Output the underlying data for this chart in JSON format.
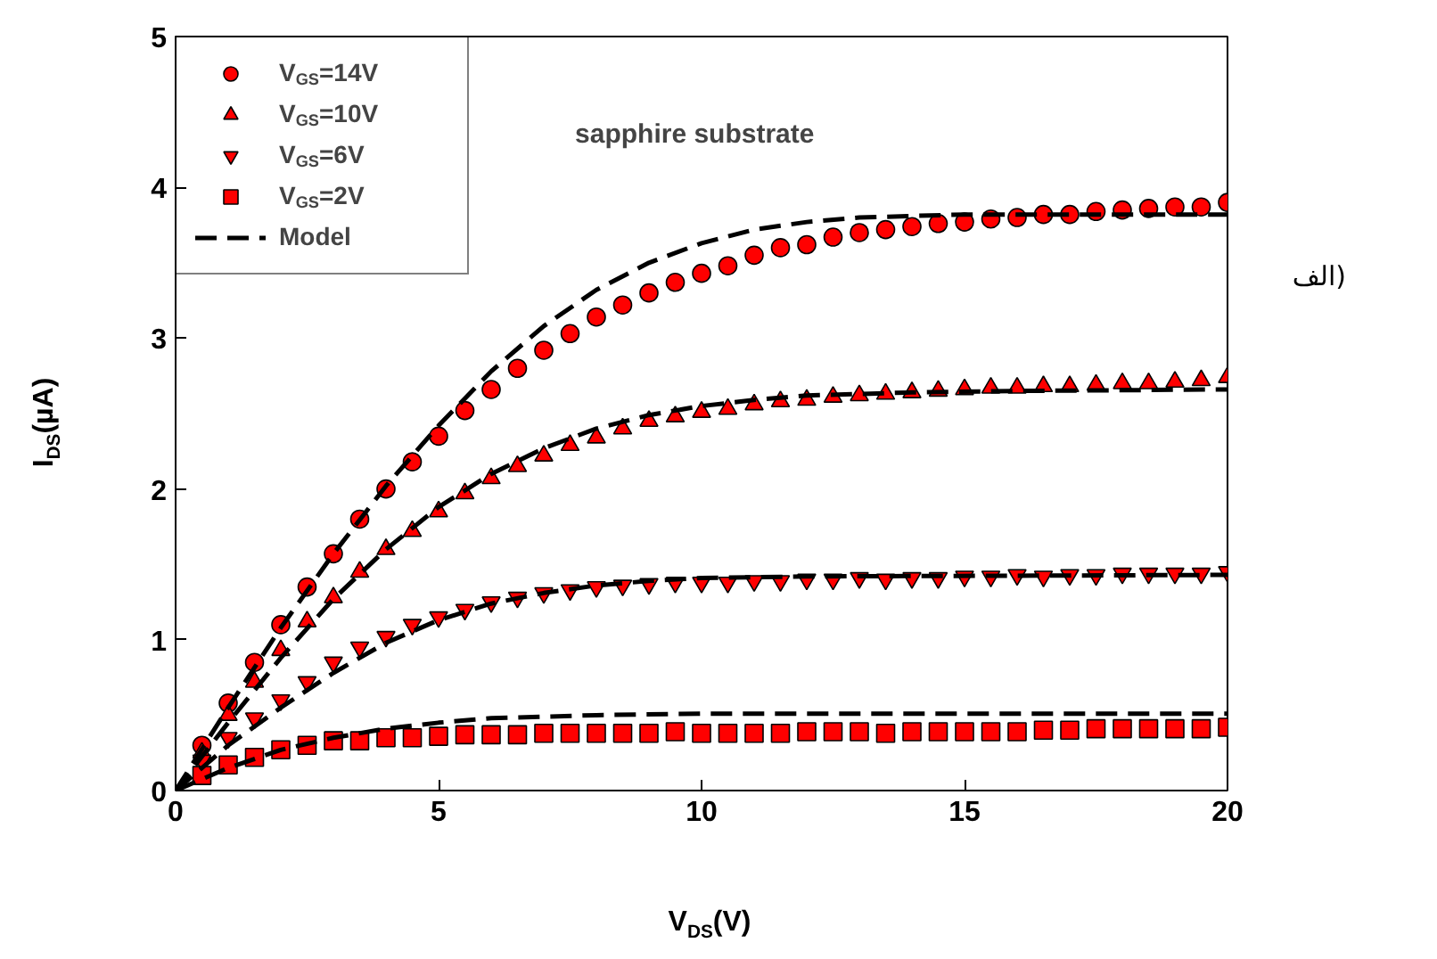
{
  "chart_data": {
    "type": "scatter",
    "xlabel": "V$_{DS}$(V)",
    "ylabel": "I$_{DS}$(µA)",
    "annotations": [
      "sapphire substrate",
      "الف)"
    ],
    "xlim": [
      0,
      20
    ],
    "ylim": [
      0,
      5
    ],
    "xticks": [
      0,
      5,
      10,
      15,
      20
    ],
    "yticks": [
      0,
      1,
      2,
      3,
      4,
      5
    ],
    "grid": false,
    "legend": "top left",
    "x": [
      0.5,
      1,
      1.5,
      2,
      2.5,
      3,
      3.5,
      4,
      4.5,
      5,
      5.5,
      6,
      6.5,
      7,
      7.5,
      8,
      8.5,
      9,
      9.5,
      10,
      10.5,
      11,
      11.5,
      12,
      12.5,
      13,
      13.5,
      14,
      14.5,
      15,
      15.5,
      16,
      16.5,
      17,
      17.5,
      18,
      18.5,
      19,
      19.5,
      20
    ],
    "series": [
      {
        "name": "V$_{GS}$=14V",
        "color": "#ff0000",
        "marker": "circle",
        "values": [
          0.3,
          0.58,
          0.85,
          1.1,
          1.35,
          1.57,
          1.8,
          2.0,
          2.18,
          2.35,
          2.52,
          2.66,
          2.8,
          2.92,
          3.03,
          3.14,
          3.22,
          3.3,
          3.37,
          3.43,
          3.48,
          3.55,
          3.6,
          3.62,
          3.67,
          3.7,
          3.72,
          3.74,
          3.76,
          3.77,
          3.79,
          3.8,
          3.82,
          3.82,
          3.84,
          3.85,
          3.86,
          3.87,
          3.87,
          3.9
        ]
      },
      {
        "name": "V$_{GS}$=10V",
        "color": "#ff0000",
        "marker": "triangle",
        "values": [
          0.25,
          0.5,
          0.72,
          0.93,
          1.12,
          1.28,
          1.45,
          1.6,
          1.72,
          1.85,
          1.97,
          2.07,
          2.15,
          2.22,
          2.29,
          2.34,
          2.4,
          2.45,
          2.48,
          2.51,
          2.53,
          2.56,
          2.58,
          2.59,
          2.61,
          2.62,
          2.63,
          2.64,
          2.65,
          2.66,
          2.67,
          2.67,
          2.68,
          2.68,
          2.69,
          2.7,
          2.7,
          2.71,
          2.72,
          2.74
        ]
      },
      {
        "name": "V$_{GS}$=6V",
        "color": "#ff0000",
        "marker": "triangle_down",
        "values": [
          0.2,
          0.35,
          0.48,
          0.6,
          0.72,
          0.85,
          0.95,
          1.02,
          1.1,
          1.15,
          1.2,
          1.25,
          1.28,
          1.31,
          1.33,
          1.35,
          1.36,
          1.37,
          1.38,
          1.38,
          1.38,
          1.39,
          1.39,
          1.4,
          1.4,
          1.41,
          1.4,
          1.41,
          1.41,
          1.42,
          1.42,
          1.43,
          1.42,
          1.43,
          1.43,
          1.44,
          1.44,
          1.44,
          1.44,
          1.45
        ]
      },
      {
        "name": "V$_{GS}$=2V",
        "color": "#ff0000",
        "marker": "square",
        "values": [
          0.1,
          0.17,
          0.22,
          0.27,
          0.3,
          0.33,
          0.33,
          0.35,
          0.35,
          0.36,
          0.37,
          0.37,
          0.37,
          0.38,
          0.38,
          0.38,
          0.38,
          0.38,
          0.39,
          0.38,
          0.38,
          0.38,
          0.38,
          0.39,
          0.39,
          0.39,
          0.38,
          0.39,
          0.39,
          0.39,
          0.39,
          0.39,
          0.4,
          0.4,
          0.41,
          0.41,
          0.41,
          0.41,
          0.41,
          0.42
        ]
      },
      {
        "name": "Model",
        "type": "line",
        "line_style": "dashed",
        "marker": "none",
        "color": "#000000",
        "x": [
          0,
          1,
          2,
          3,
          4,
          5,
          6,
          7,
          8,
          9,
          10,
          11,
          12,
          13,
          14,
          15,
          20
        ],
        "values": [
          0,
          0.55,
          1.08,
          1.57,
          2.02,
          2.42,
          2.78,
          3.08,
          3.32,
          3.5,
          3.63,
          3.72,
          3.77,
          3.8,
          3.81,
          3.82,
          3.82
        ]
      },
      {
        "type": "line",
        "line_style": "dashed",
        "marker": "none",
        "color": "#000000",
        "x": [
          0,
          1,
          2,
          3,
          4,
          5,
          6,
          7,
          8,
          9,
          10,
          11,
          12,
          14,
          16,
          20
        ],
        "values": [
          0,
          0.45,
          0.88,
          1.27,
          1.6,
          1.88,
          2.1,
          2.27,
          2.4,
          2.49,
          2.55,
          2.59,
          2.62,
          2.64,
          2.65,
          2.66
        ]
      },
      {
        "type": "line",
        "line_style": "dashed",
        "marker": "none",
        "color": "#000000",
        "x": [
          0,
          1,
          2,
          3,
          4,
          5,
          6,
          7,
          8,
          9,
          10,
          12,
          20
        ],
        "values": [
          0,
          0.3,
          0.55,
          0.78,
          0.98,
          1.13,
          1.24,
          1.31,
          1.36,
          1.39,
          1.41,
          1.42,
          1.43
        ]
      },
      {
        "type": "line",
        "line_style": "dashed",
        "marker": "none",
        "color": "#000000",
        "x": [
          0,
          1,
          2,
          3,
          4,
          5,
          6,
          8,
          10,
          20
        ],
        "values": [
          0,
          0.15,
          0.27,
          0.35,
          0.41,
          0.45,
          0.48,
          0.5,
          0.51,
          0.51
        ]
      }
    ]
  }
}
